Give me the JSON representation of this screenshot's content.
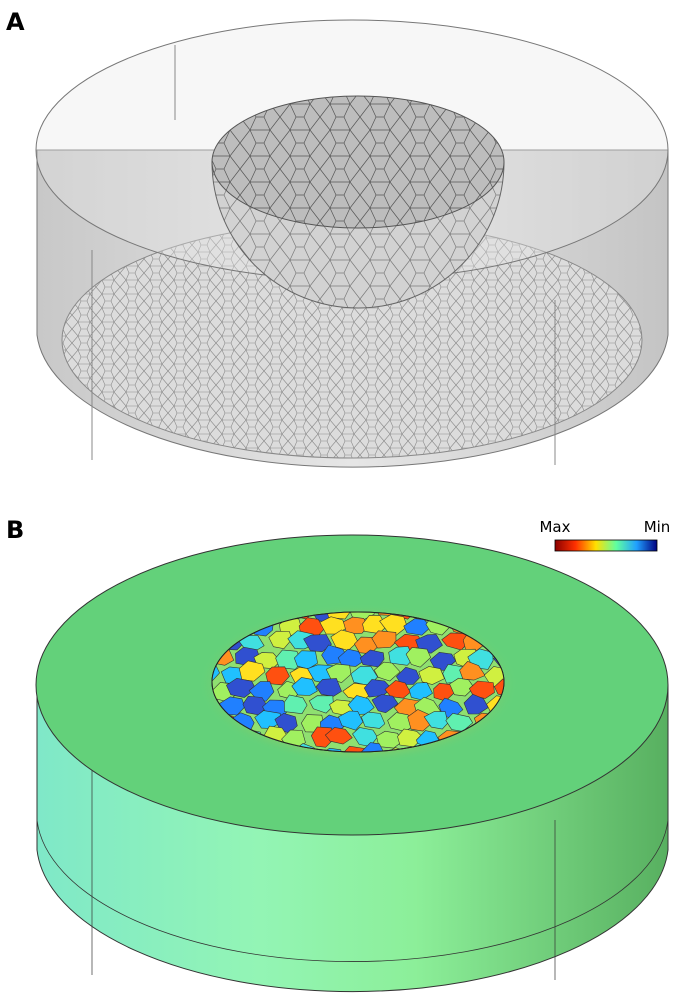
{
  "panels": [
    {
      "label": "A"
    },
    {
      "label": "B",
      "colorbar": {
        "max_label": "Max",
        "min_label": "Min"
      }
    }
  ]
}
